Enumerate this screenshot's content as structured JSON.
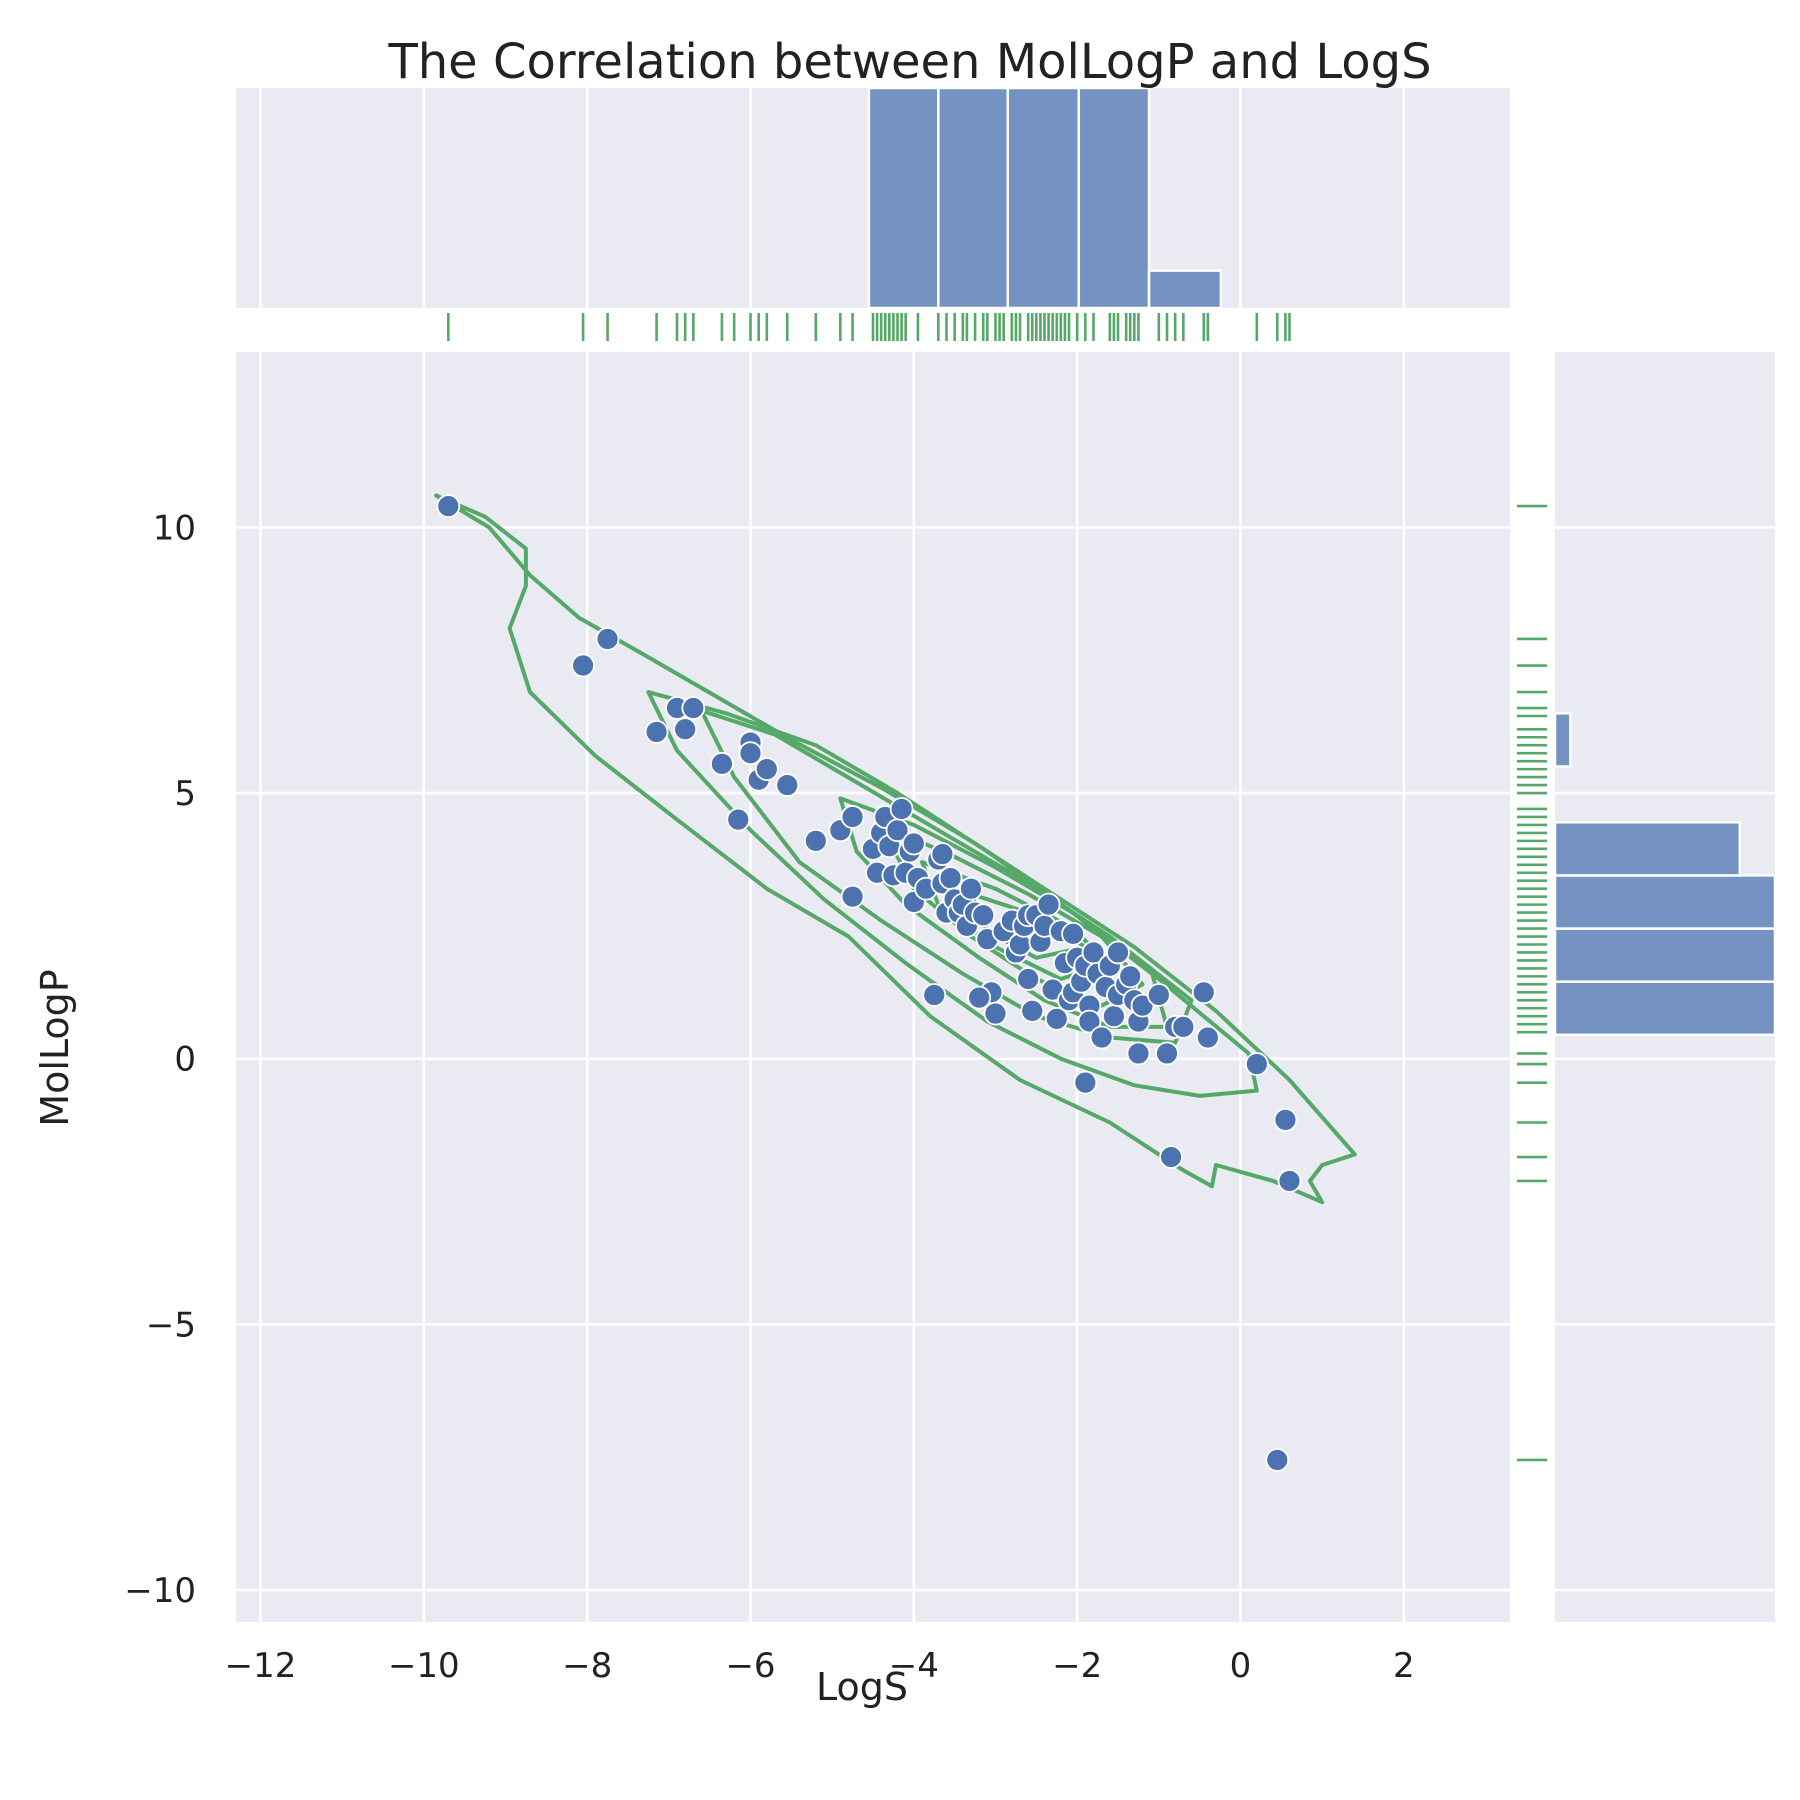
{
  "chart_data": {
    "type": "scatter",
    "title": "The Correlation between MolLogP and LogS",
    "xlabel": "LogS",
    "ylabel": "MolLogP",
    "xlim": [
      -12.3,
      3.3
    ],
    "ylim": [
      -10.6,
      13.3
    ],
    "xticks": [
      -12,
      -10,
      -8,
      -6,
      -4,
      -2,
      0,
      2
    ],
    "yticks": [
      -10,
      -5,
      0,
      5,
      10
    ],
    "xtick_labels": [
      "−12",
      "−10",
      "−8",
      "−6",
      "−4",
      "−2",
      "0",
      "2"
    ],
    "ytick_labels": [
      "−10",
      "−5",
      "0",
      "5",
      "10"
    ],
    "grid": true,
    "colors": {
      "points": "#4c72b0",
      "bars": "#7493c3",
      "rug_kde": "#55a868",
      "panel": "#eaeaf2"
    },
    "points": [
      [
        -9.7,
        10.4
      ],
      [
        -8.05,
        7.4
      ],
      [
        -7.75,
        7.9
      ],
      [
        -7.15,
        6.15
      ],
      [
        -6.9,
        6.6
      ],
      [
        -6.7,
        6.6
      ],
      [
        -6.8,
        6.2
      ],
      [
        -6.35,
        5.55
      ],
      [
        -6.15,
        4.5
      ],
      [
        -6.0,
        5.95
      ],
      [
        -6.0,
        5.75
      ],
      [
        -5.9,
        5.25
      ],
      [
        -5.8,
        5.45
      ],
      [
        -5.55,
        5.15
      ],
      [
        -5.2,
        4.1
      ],
      [
        -4.9,
        4.3
      ],
      [
        -4.75,
        4.55
      ],
      [
        -4.75,
        3.05
      ],
      [
        -4.5,
        3.95
      ],
      [
        -4.45,
        3.5
      ],
      [
        -4.4,
        4.25
      ],
      [
        -4.35,
        4.55
      ],
      [
        -4.3,
        4.0
      ],
      [
        -4.25,
        3.45
      ],
      [
        -4.2,
        4.3
      ],
      [
        -4.15,
        4.7
      ],
      [
        -4.1,
        3.5
      ],
      [
        -4.05,
        3.9
      ],
      [
        -4.0,
        4.05
      ],
      [
        -4.0,
        2.95
      ],
      [
        -3.95,
        3.4
      ],
      [
        -3.85,
        3.2
      ],
      [
        -3.7,
        3.75
      ],
      [
        -3.65,
        3.85
      ],
      [
        -3.65,
        3.3
      ],
      [
        -3.6,
        2.75
      ],
      [
        -3.55,
        3.4
      ],
      [
        -3.5,
        3.0
      ],
      [
        -3.45,
        2.75
      ],
      [
        -3.4,
        2.9
      ],
      [
        -3.35,
        2.5
      ],
      [
        -3.3,
        3.2
      ],
      [
        -3.25,
        2.75
      ],
      [
        -3.15,
        2.7
      ],
      [
        -3.1,
        2.25
      ],
      [
        -3.05,
        1.25
      ],
      [
        -3.2,
        1.15
      ],
      [
        -3.0,
        0.85
      ],
      [
        -3.75,
        1.2
      ],
      [
        -2.9,
        2.4
      ],
      [
        -2.8,
        2.6
      ],
      [
        -2.75,
        2.0
      ],
      [
        -2.7,
        2.15
      ],
      [
        -2.65,
        2.5
      ],
      [
        -2.6,
        2.7
      ],
      [
        -2.6,
        1.5
      ],
      [
        -2.55,
        0.9
      ],
      [
        -2.5,
        2.7
      ],
      [
        -2.45,
        2.2
      ],
      [
        -2.4,
        2.5
      ],
      [
        -2.35,
        2.9
      ],
      [
        -2.3,
        1.3
      ],
      [
        -2.25,
        0.75
      ],
      [
        -2.2,
        2.4
      ],
      [
        -2.15,
        1.8
      ],
      [
        -2.1,
        1.1
      ],
      [
        -2.05,
        2.35
      ],
      [
        -2.05,
        1.25
      ],
      [
        -2.0,
        1.9
      ],
      [
        -1.95,
        1.45
      ],
      [
        -1.9,
        1.75
      ],
      [
        -1.85,
        1.0
      ],
      [
        -1.85,
        0.7
      ],
      [
        -1.8,
        2.0
      ],
      [
        -1.75,
        1.6
      ],
      [
        -1.7,
        0.4
      ],
      [
        -1.65,
        1.35
      ],
      [
        -1.6,
        1.75
      ],
      [
        -1.55,
        0.8
      ],
      [
        -1.5,
        1.2
      ],
      [
        -1.5,
        2.0
      ],
      [
        -1.4,
        1.4
      ],
      [
        -1.35,
        1.55
      ],
      [
        -1.3,
        1.1
      ],
      [
        -1.25,
        0.7
      ],
      [
        -1.25,
        0.1
      ],
      [
        -1.2,
        1.0
      ],
      [
        -1.0,
        1.2
      ],
      [
        -0.9,
        0.1
      ],
      [
        -0.8,
        0.6
      ],
      [
        -0.7,
        0.6
      ],
      [
        -0.45,
        1.25
      ],
      [
        -0.4,
        0.4
      ],
      [
        -1.9,
        -0.45
      ],
      [
        -0.85,
        -1.85
      ],
      [
        0.2,
        -0.1
      ],
      [
        0.55,
        -1.15
      ],
      [
        0.6,
        -2.3
      ],
      [
        0.45,
        -7.55
      ]
    ],
    "marginal_x": {
      "bin_edges": [
        -4.55,
        -3.7,
        -2.85,
        -1.98,
        -1.12,
        -0.24
      ],
      "bar_fractions": [
        1.0,
        1.0,
        1.0,
        1.0,
        0.17
      ],
      "rug": [
        -9.7,
        -8.05,
        -7.75,
        -7.15,
        -6.9,
        -6.8,
        -6.7,
        -6.35,
        -6.2,
        -6.0,
        -5.9,
        -5.8,
        -5.55,
        -5.2,
        -4.9,
        -4.75,
        -4.5,
        -4.45,
        -4.4,
        -4.35,
        -4.3,
        -4.25,
        -4.2,
        -4.15,
        -4.1,
        -3.95,
        -3.7,
        -3.6,
        -3.5,
        -3.4,
        -3.35,
        -3.25,
        -3.15,
        -3.1,
        -3.0,
        -2.95,
        -2.9,
        -2.8,
        -2.75,
        -2.7,
        -2.6,
        -2.55,
        -2.5,
        -2.45,
        -2.4,
        -2.35,
        -2.3,
        -2.25,
        -2.2,
        -2.15,
        -2.1,
        -2.0,
        -1.9,
        -1.8,
        -1.6,
        -1.55,
        -1.5,
        -1.4,
        -1.35,
        -1.3,
        -1.25,
        -1.0,
        -0.9,
        -0.8,
        -0.7,
        -0.45,
        -0.4,
        0.2,
        0.45,
        0.55,
        0.6
      ]
    },
    "marginal_y": {
      "bin_edges": [
        0.45,
        1.45,
        2.45,
        3.45,
        4.45,
        5.5,
        6.5
      ],
      "bar_fractions": [
        1.0,
        1.0,
        1.0,
        0.84,
        0.0,
        0.07
      ],
      "rug": [
        10.4,
        7.9,
        7.4,
        6.9,
        6.6,
        6.45,
        6.2,
        6.05,
        5.9,
        5.75,
        5.6,
        5.45,
        5.3,
        5.15,
        5.0,
        4.7,
        4.55,
        4.4,
        4.25,
        4.1,
        3.95,
        3.8,
        3.65,
        3.5,
        3.35,
        3.2,
        3.05,
        2.9,
        2.75,
        2.6,
        2.45,
        2.3,
        2.15,
        2.0,
        1.85,
        1.7,
        1.55,
        1.4,
        1.25,
        1.1,
        0.95,
        0.8,
        0.65,
        0.5,
        0.1,
        -0.1,
        -0.45,
        -1.2,
        -1.85,
        -2.3,
        -7.55
      ]
    },
    "kde_levels": [
      [
        [
          -9.85,
          10.6
        ],
        [
          -9.2,
          10.0
        ],
        [
          -8.7,
          9.1
        ],
        [
          -8.1,
          8.3
        ],
        [
          -7.3,
          7.6
        ],
        [
          -6.4,
          6.8
        ],
        [
          -5.5,
          6.0
        ],
        [
          -4.4,
          5.1
        ],
        [
          -3.3,
          4.1
        ],
        [
          -2.3,
          3.1
        ],
        [
          -1.3,
          2.1
        ],
        [
          -0.3,
          0.9
        ],
        [
          0.6,
          -0.4
        ],
        [
          1.4,
          -1.8
        ],
        [
          1.0,
          -2.0
        ],
        [
          0.85,
          -2.3
        ],
        [
          1.0,
          -2.7
        ],
        [
          0.4,
          -2.3
        ],
        [
          -0.3,
          -2.0
        ],
        [
          -0.35,
          -2.4
        ],
        [
          -0.7,
          -2.1
        ],
        [
          -1.6,
          -1.2
        ],
        [
          -2.7,
          -0.4
        ],
        [
          -3.8,
          0.8
        ],
        [
          -4.8,
          2.3
        ],
        [
          -5.8,
          3.2
        ],
        [
          -6.9,
          4.5
        ],
        [
          -7.9,
          5.7
        ],
        [
          -8.7,
          6.9
        ],
        [
          -8.95,
          8.1
        ],
        [
          -8.75,
          8.9
        ],
        [
          -8.75,
          9.6
        ],
        [
          -9.25,
          10.2
        ],
        [
          -9.85,
          10.6
        ]
      ],
      [
        [
          -7.25,
          6.9
        ],
        [
          -6.3,
          6.5
        ],
        [
          -5.2,
          5.9
        ],
        [
          -4.2,
          5.0
        ],
        [
          -3.1,
          3.9
        ],
        [
          -2.1,
          2.8
        ],
        [
          -1.0,
          1.5
        ],
        [
          0.1,
          0.1
        ],
        [
          0.2,
          -0.6
        ],
        [
          -0.5,
          -0.7
        ],
        [
          -1.3,
          -0.5
        ],
        [
          -2.2,
          0.0
        ],
        [
          -3.1,
          0.7
        ],
        [
          -4.1,
          1.8
        ],
        [
          -5.1,
          3.0
        ],
        [
          -6.0,
          4.3
        ],
        [
          -6.9,
          5.8
        ],
        [
          -7.25,
          6.9
        ]
      ],
      [
        [
          -6.6,
          6.55
        ],
        [
          -5.7,
          6.1
        ],
        [
          -4.7,
          5.2
        ],
        [
          -3.7,
          4.3
        ],
        [
          -2.7,
          3.4
        ],
        [
          -1.6,
          2.3
        ],
        [
          -0.6,
          1.1
        ],
        [
          -0.8,
          0.3
        ],
        [
          -1.6,
          0.4
        ],
        [
          -2.5,
          0.8
        ],
        [
          -3.4,
          1.6
        ],
        [
          -4.4,
          2.6
        ],
        [
          -5.4,
          3.7
        ],
        [
          -6.2,
          5.3
        ],
        [
          -6.6,
          6.55
        ]
      ],
      [
        [
          -4.9,
          4.9
        ],
        [
          -4.0,
          4.4
        ],
        [
          -3.0,
          3.6
        ],
        [
          -2.0,
          2.7
        ],
        [
          -1.1,
          1.7
        ],
        [
          -0.9,
          0.6
        ],
        [
          -1.6,
          0.6
        ],
        [
          -2.4,
          1.1
        ],
        [
          -3.2,
          1.9
        ],
        [
          -4.1,
          2.9
        ],
        [
          -4.7,
          3.9
        ],
        [
          -4.9,
          4.9
        ]
      ],
      [
        [
          -4.4,
          4.4
        ],
        [
          -3.5,
          3.8
        ],
        [
          -2.6,
          3.1
        ],
        [
          -1.7,
          2.3
        ],
        [
          -1.2,
          1.4
        ],
        [
          -1.7,
          1.0
        ],
        [
          -2.5,
          1.5
        ],
        [
          -3.3,
          2.3
        ],
        [
          -4.0,
          3.2
        ],
        [
          -4.4,
          4.4
        ]
      ],
      [
        [
          -3.9,
          3.7
        ],
        [
          -3.0,
          3.2
        ],
        [
          -2.1,
          2.5
        ],
        [
          -1.6,
          1.8
        ],
        [
          -2.2,
          1.5
        ],
        [
          -3.0,
          2.1
        ],
        [
          -3.7,
          2.9
        ],
        [
          -3.9,
          3.7
        ]
      ],
      [
        [
          -3.3,
          3.1
        ],
        [
          -2.5,
          2.7
        ],
        [
          -1.9,
          2.1
        ],
        [
          -2.5,
          1.9
        ],
        [
          -3.1,
          2.4
        ],
        [
          -3.3,
          3.1
        ]
      ]
    ]
  }
}
